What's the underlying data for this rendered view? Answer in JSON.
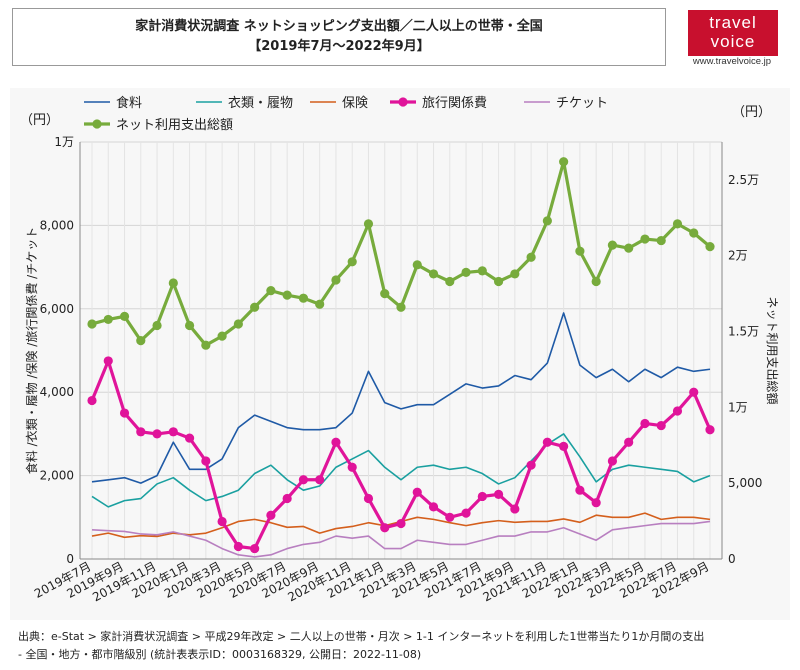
{
  "header": {
    "title_line1": "家計消費状況調査 ネットショッピング支出額／二人以上の世帯・全国",
    "title_line2": "【2019年7月～2022年9月】"
  },
  "logo": {
    "line1": "travel",
    "line2": "voice",
    "url": "www.travelvoice.jp"
  },
  "source": {
    "line1": "出典：e-Stat > 家計消費状況調査 > 平成29年改定 > 二人以上の世帯・月次 > 1-1 インターネットを利用した1世帯当たり1か月間の支出",
    "line2": "- 全国・地方・都市階級別 (統計表表示ID：0003168329, 公開日：2022-11-08)"
  },
  "chart_data": {
    "type": "line",
    "unit_left": "（円）",
    "unit_right": "（円）",
    "ylabel_left": "食料 /衣類・履物 /保険 /旅行関係費 /チケット",
    "ylabel_right": "ネット利用支出総額",
    "ylim_left": [
      0,
      10000
    ],
    "ylim_right": [
      0,
      27500
    ],
    "yticks_left": [
      {
        "value": 0,
        "label": "0"
      },
      {
        "value": 2000,
        "label": "2,000"
      },
      {
        "value": 4000,
        "label": "4,000"
      },
      {
        "value": 6000,
        "label": "6,000"
      },
      {
        "value": 8000,
        "label": "8,000"
      },
      {
        "value": 10000,
        "label": "1万"
      }
    ],
    "yticks_right": [
      {
        "value": 0,
        "label": "0"
      },
      {
        "value": 5000,
        "label": "5,000"
      },
      {
        "value": 10000,
        "label": "1万"
      },
      {
        "value": 15000,
        "label": "1.5万"
      },
      {
        "value": 20000,
        "label": "2万"
      },
      {
        "value": 25000,
        "label": "2.5万"
      }
    ],
    "x": [
      "2019年7月",
      "2019年8月",
      "2019年9月",
      "2019年10月",
      "2019年11月",
      "2019年12月",
      "2020年1月",
      "2020年2月",
      "2020年3月",
      "2020年4月",
      "2020年5月",
      "2020年6月",
      "2020年7月",
      "2020年8月",
      "2020年9月",
      "2020年10月",
      "2020年11月",
      "2020年12月",
      "2021年1月",
      "2021年2月",
      "2021年3月",
      "2021年4月",
      "2021年5月",
      "2021年6月",
      "2021年7月",
      "2021年8月",
      "2021年9月",
      "2021年10月",
      "2021年11月",
      "2021年12月",
      "2022年1月",
      "2022年2月",
      "2022年3月",
      "2022年4月",
      "2022年5月",
      "2022年6月",
      "2022年7月",
      "2022年8月",
      "2022年9月"
    ],
    "xtick_labels": [
      "2019年7月",
      "2019年9月",
      "2019年11月",
      "2020年1月",
      "2020年3月",
      "2020年5月",
      "2020年7月",
      "2020年9月",
      "2020年11月",
      "2021年1月",
      "2021年3月",
      "2021年5月",
      "2021年7月",
      "2021年9月",
      "2021年11月",
      "2022年1月",
      "2022年3月",
      "2022年5月",
      "2022年7月",
      "2022年9月"
    ],
    "grid": true,
    "legend_position": "top",
    "series": [
      {
        "name": "食料",
        "axis": "left",
        "color": "#1f5aa6",
        "width": 1.6,
        "marker": false,
        "values": [
          1850,
          1900,
          1950,
          1820,
          2000,
          2800,
          2150,
          2150,
          2400,
          3150,
          3450,
          3300,
          3150,
          3100,
          3100,
          3150,
          3500,
          4500,
          3750,
          3600,
          3700,
          3700,
          3950,
          4200,
          4100,
          4150,
          4400,
          4300,
          4700,
          5900,
          4650,
          4350,
          4550,
          4250,
          4550,
          4350,
          4600,
          4500,
          4550
        ]
      },
      {
        "name": "衣類・履物",
        "axis": "left",
        "color": "#1aa0a0",
        "width": 1.6,
        "marker": false,
        "values": [
          1500,
          1250,
          1400,
          1450,
          1800,
          1950,
          1650,
          1400,
          1500,
          1650,
          2050,
          2250,
          1900,
          1650,
          1750,
          2200,
          2400,
          2600,
          2200,
          1900,
          2200,
          2250,
          2150,
          2200,
          2050,
          1800,
          1950,
          2350,
          2750,
          3000,
          2450,
          1850,
          2150,
          2250,
          2200,
          2150,
          2100,
          1850,
          2000
        ]
      },
      {
        "name": "保険",
        "axis": "left",
        "color": "#d45f1c",
        "width": 1.6,
        "marker": false,
        "values": [
          550,
          620,
          520,
          560,
          540,
          620,
          580,
          620,
          750,
          900,
          950,
          870,
          760,
          780,
          620,
          730,
          780,
          870,
          800,
          900,
          1000,
          950,
          870,
          800,
          870,
          920,
          880,
          900,
          900,
          960,
          880,
          1050,
          1000,
          1000,
          1100,
          950,
          1000,
          1000,
          950
        ]
      },
      {
        "name": "旅行関係費",
        "axis": "left",
        "color": "#e0149a",
        "width": 3.2,
        "marker": true,
        "values": [
          3800,
          4750,
          3500,
          3050,
          3000,
          3050,
          2900,
          2350,
          900,
          300,
          250,
          1050,
          1450,
          1900,
          1900,
          2800,
          2200,
          1450,
          750,
          850,
          1600,
          1250,
          1000,
          1100,
          1500,
          1550,
          1200,
          2250,
          2800,
          2700,
          1650,
          1350,
          2350,
          2800,
          3250,
          3200,
          3550,
          4000,
          3100
        ]
      },
      {
        "name": "チケット",
        "axis": "left",
        "color": "#b87fc0",
        "width": 1.6,
        "marker": false,
        "values": [
          700,
          680,
          660,
          600,
          580,
          650,
          550,
          450,
          250,
          100,
          50,
          100,
          250,
          350,
          400,
          550,
          500,
          550,
          250,
          250,
          450,
          400,
          350,
          350,
          450,
          550,
          550,
          650,
          650,
          750,
          600,
          450,
          700,
          750,
          800,
          850,
          850,
          850,
          900
        ]
      },
      {
        "name": "ネット利用支出総額",
        "axis": "right",
        "color": "#77ab3c",
        "width": 3.2,
        "marker": true,
        "values": [
          15500,
          15800,
          16000,
          14400,
          15400,
          18200,
          15400,
          14100,
          14700,
          15500,
          16600,
          17700,
          17400,
          17200,
          16800,
          18400,
          19600,
          22100,
          17500,
          16600,
          19400,
          18800,
          18300,
          18900,
          19000,
          18300,
          18800,
          19900,
          22300,
          26200,
          20300,
          18300,
          20700,
          20500,
          21100,
          21000,
          22100,
          21500,
          20600
        ]
      }
    ]
  }
}
